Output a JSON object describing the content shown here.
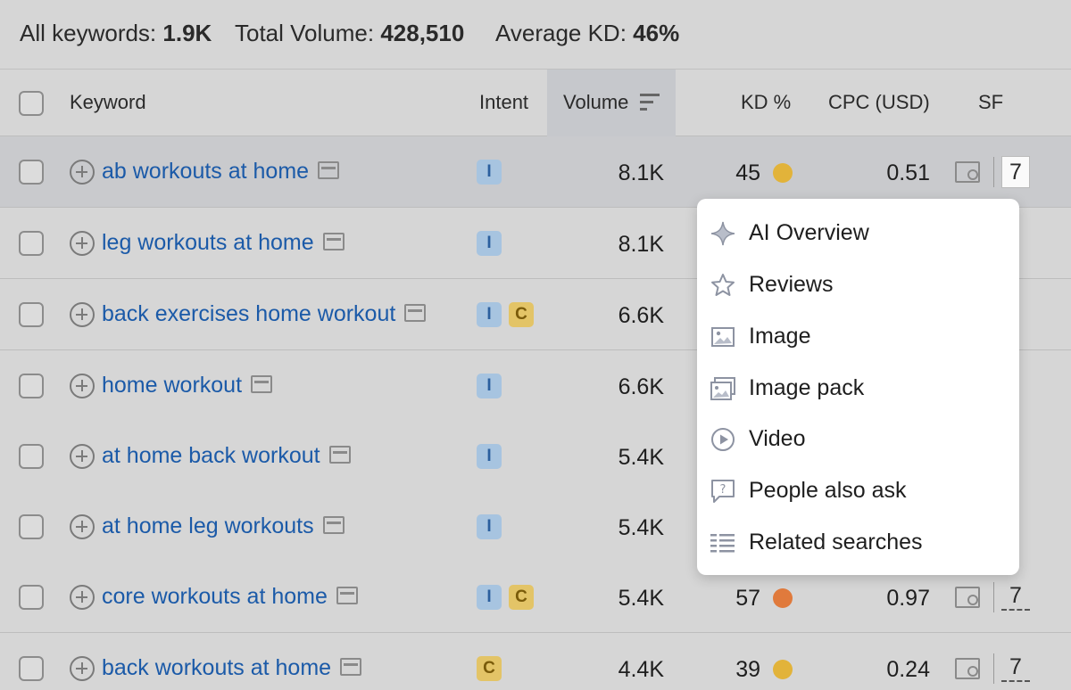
{
  "summary": {
    "all_keywords_label": "All keywords:",
    "all_keywords_value": "1.9K",
    "total_volume_label": "Total Volume:",
    "total_volume_value": "428,510",
    "average_kd_label": "Average KD:",
    "average_kd_value": "46%"
  },
  "table": {
    "headers": {
      "keyword": "Keyword",
      "intent": "Intent",
      "volume": "Volume",
      "kd": "KD %",
      "cpc": "CPC (USD)",
      "sf": "SF"
    },
    "rows": [
      {
        "keyword": "ab workouts at home",
        "intent": [
          "I"
        ],
        "volume": "8.1K",
        "kd": "45",
        "kd_color": "#e2b33a",
        "cpc": "0.51",
        "sf": "7"
      },
      {
        "keyword": "leg workouts at home",
        "intent": [
          "I"
        ],
        "volume": "8.1K",
        "kd": "",
        "kd_color": "",
        "cpc": "",
        "sf": ""
      },
      {
        "keyword": "back exercises home workout",
        "intent": [
          "I",
          "C"
        ],
        "volume": "6.6K",
        "kd": "",
        "kd_color": "",
        "cpc": "",
        "sf": ""
      },
      {
        "keyword": "home workout",
        "intent": [
          "I"
        ],
        "volume": "6.6K",
        "kd": "",
        "kd_color": "",
        "cpc": "",
        "sf": ""
      },
      {
        "keyword": "at home back workout",
        "intent": [
          "I"
        ],
        "volume": "5.4K",
        "kd": "",
        "kd_color": "",
        "cpc": "",
        "sf": ""
      },
      {
        "keyword": "at home leg workouts",
        "intent": [
          "I"
        ],
        "volume": "5.4K",
        "kd": "",
        "kd_color": "",
        "cpc": "",
        "sf": ""
      },
      {
        "keyword": "core workouts at home",
        "intent": [
          "I",
          "C"
        ],
        "volume": "5.4K",
        "kd": "57",
        "kd_color": "#e07a3c",
        "cpc": "0.97",
        "sf": "7"
      },
      {
        "keyword": "back workouts at home",
        "intent": [
          "C"
        ],
        "volume": "4.4K",
        "kd": "39",
        "kd_color": "#e2b33a",
        "cpc": "0.24",
        "sf": "7"
      }
    ]
  },
  "serp_features_popup": {
    "items": [
      {
        "label": "AI Overview",
        "icon": "sparkle-icon"
      },
      {
        "label": "Reviews",
        "icon": "star-icon"
      },
      {
        "label": "Image",
        "icon": "image-icon"
      },
      {
        "label": "Image pack",
        "icon": "image-pack-icon"
      },
      {
        "label": "Video",
        "icon": "play-icon"
      },
      {
        "label": "People also ask",
        "icon": "question-bubble-icon"
      },
      {
        "label": "Related searches",
        "icon": "list-icon"
      }
    ]
  }
}
